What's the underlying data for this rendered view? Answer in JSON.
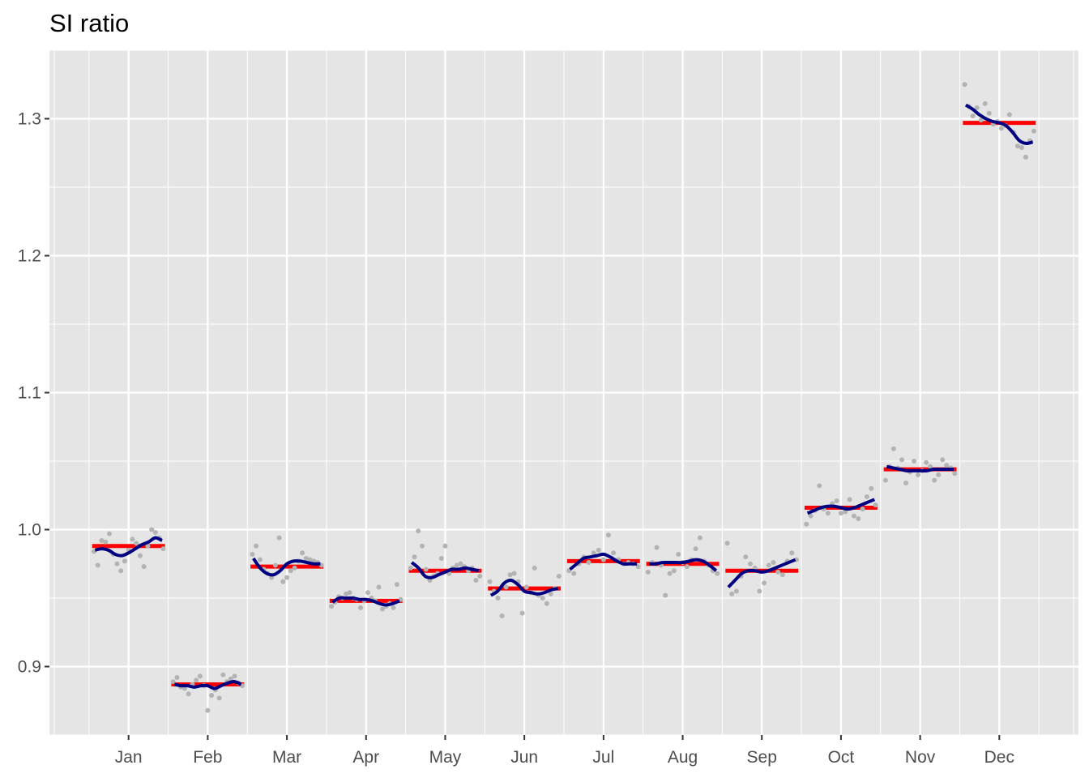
{
  "chart_data": {
    "type": "scatter",
    "title": "SI ratio",
    "xlabel": "",
    "ylabel": "",
    "ylim": [
      0.85,
      1.35
    ],
    "y_ticks": [
      "0.9",
      "1.0",
      "1.1",
      "1.2",
      "1.3"
    ],
    "categories": [
      "Jan",
      "Feb",
      "Mar",
      "Apr",
      "May",
      "Jun",
      "Jul",
      "Aug",
      "Sep",
      "Oct",
      "Nov",
      "Dec"
    ],
    "grid": true,
    "legend": "none",
    "colors": {
      "points": "#b3b3b3",
      "mean": "#ff0000",
      "trend": "#000080",
      "panel": "#e5e5e5",
      "grid": "#ffffff"
    },
    "means": [
      0.988,
      0.887,
      0.973,
      0.948,
      0.97,
      0.957,
      0.977,
      0.975,
      0.97,
      1.016,
      1.044,
      1.297
    ],
    "trends": [
      [
        0.985,
        0.986,
        0.985,
        0.982,
        0.981,
        0.983,
        0.986,
        0.989,
        0.991,
        0.994,
        0.992
      ],
      [
        0.887,
        0.886,
        0.886,
        0.885,
        0.886,
        0.886,
        0.884,
        0.886,
        0.888,
        0.889,
        0.887
      ],
      [
        0.979,
        0.972,
        0.968,
        0.967,
        0.97,
        0.975,
        0.977,
        0.977,
        0.976,
        0.975,
        0.975
      ],
      [
        0.947,
        0.95,
        0.95,
        0.95,
        0.949,
        0.949,
        0.948,
        0.946,
        0.945,
        0.946,
        0.948
      ],
      [
        0.976,
        0.972,
        0.966,
        0.965,
        0.967,
        0.969,
        0.971,
        0.971,
        0.972,
        0.971,
        0.97
      ],
      [
        0.952,
        0.955,
        0.961,
        0.963,
        0.96,
        0.955,
        0.954,
        0.953,
        0.954,
        0.956,
        0.957
      ],
      [
        0.971,
        0.975,
        0.979,
        0.98,
        0.981,
        0.982,
        0.98,
        0.977,
        0.975,
        0.975,
        0.975
      ],
      [
        0.975,
        0.975,
        0.976,
        0.976,
        0.976,
        0.976,
        0.977,
        0.978,
        0.977,
        0.974,
        0.97
      ],
      [
        0.958,
        0.963,
        0.968,
        0.97,
        0.97,
        0.969,
        0.97,
        0.972,
        0.974,
        0.976,
        0.978
      ],
      [
        1.012,
        1.014,
        1.016,
        1.017,
        1.017,
        1.016,
        1.015,
        1.016,
        1.018,
        1.02,
        1.022
      ],
      [
        1.046,
        1.045,
        1.044,
        1.043,
        1.043,
        1.043,
        1.043,
        1.044,
        1.044,
        1.044,
        1.044
      ],
      [
        1.31,
        1.307,
        1.303,
        1.3,
        1.298,
        1.297,
        1.295,
        1.29,
        1.284,
        1.282,
        1.283
      ]
    ],
    "points": [
      [
        0.984,
        0.974,
        0.992,
        0.991,
        0.997,
        0.982,
        0.975,
        0.97,
        0.977,
        0.985,
        0.993,
        0.99,
        0.981,
        0.973,
        0.988,
        1.0,
        0.998,
        0.994,
        0.986
      ],
      [
        0.889,
        0.892,
        0.885,
        0.884,
        0.88,
        0.887,
        0.89,
        0.893,
        0.886,
        0.868,
        0.879,
        0.883,
        0.877,
        0.894,
        0.889,
        0.891,
        0.893,
        0.888,
        0.886
      ],
      [
        0.982,
        0.988,
        0.978,
        0.971,
        0.968,
        0.965,
        0.974,
        0.994,
        0.962,
        0.965,
        0.97,
        0.972,
        0.977,
        0.983,
        0.979,
        0.978,
        0.977,
        0.976,
        0.974
      ],
      [
        0.944,
        0.947,
        0.951,
        0.95,
        0.953,
        0.954,
        0.95,
        0.949,
        0.943,
        0.948,
        0.954,
        0.95,
        0.948,
        0.958,
        0.942,
        0.944,
        0.946,
        0.943,
        0.96,
        0.949
      ],
      [
        0.972,
        0.98,
        0.999,
        0.988,
        0.971,
        0.963,
        0.966,
        0.968,
        0.979,
        0.988,
        0.968,
        0.972,
        0.974,
        0.975,
        0.973,
        0.97,
        0.972,
        0.963,
        0.966
      ],
      [
        0.962,
        0.955,
        0.95,
        0.937,
        0.958,
        0.967,
        0.968,
        0.962,
        0.939,
        0.958,
        0.954,
        0.972,
        0.952,
        0.95,
        0.946,
        0.953,
        0.957,
        0.966
      ],
      [
        0.97,
        0.968,
        0.975,
        0.98,
        0.976,
        0.983,
        0.985,
        0.978,
        0.996,
        0.983,
        0.978,
        0.975,
        0.976,
        0.975,
        0.973
      ],
      [
        0.969,
        0.976,
        0.987,
        0.974,
        0.952,
        0.968,
        0.97,
        0.982,
        0.976,
        0.973,
        0.978,
        0.986,
        0.994,
        0.977,
        0.974,
        0.97,
        0.968
      ],
      [
        0.99,
        0.953,
        0.955,
        0.966,
        0.98,
        0.975,
        0.972,
        0.955,
        0.961,
        0.974,
        0.976,
        0.969,
        0.967,
        0.977,
        0.983,
        0.978
      ],
      [
        1.004,
        1.01,
        1.014,
        1.032,
        1.015,
        1.012,
        1.019,
        1.021,
        1.012,
        1.013,
        1.022,
        1.01,
        1.008,
        1.015,
        1.024,
        1.03,
        1.018
      ],
      [
        1.036,
        1.046,
        1.059,
        1.045,
        1.051,
        1.034,
        1.042,
        1.05,
        1.04,
        1.043,
        1.049,
        1.046,
        1.036,
        1.04,
        1.051,
        1.047,
        1.045,
        1.041
      ],
      [
        1.325,
        1.309,
        1.302,
        1.308,
        1.299,
        1.311,
        1.304,
        1.296,
        1.298,
        1.293,
        1.295,
        1.303,
        1.29,
        1.28,
        1.279,
        1.272,
        1.284,
        1.291
      ]
    ]
  }
}
